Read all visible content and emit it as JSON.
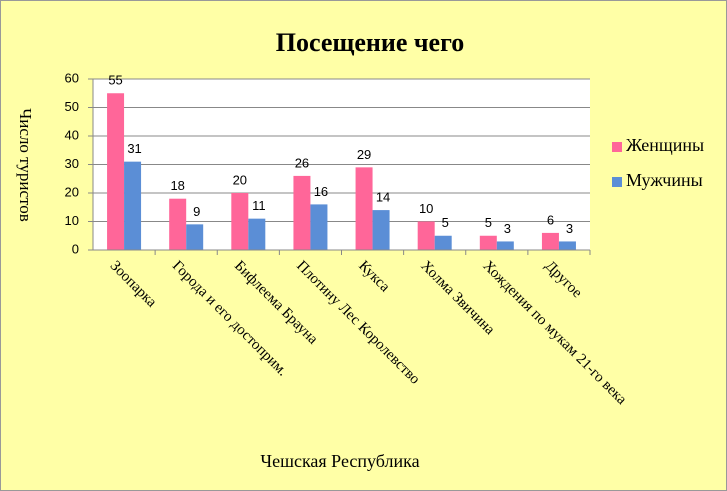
{
  "chart_data": {
    "type": "bar",
    "title": "Посещение чего",
    "ylabel": "Число туристов",
    "xlabel": "Чешская Республика",
    "categories": [
      "Зоопарка",
      "Города и его достоприм.",
      "Бифлеема Брауна",
      "Плотину Лес Королевство",
      "Кукса",
      "Холма Звичина",
      "Хождения по мукам 21-го века",
      "Другое"
    ],
    "series": [
      {
        "name": "Женщины",
        "color": "#ff6699",
        "values": [
          55,
          18,
          20,
          26,
          29,
          10,
          5,
          6
        ]
      },
      {
        "name": "Мужчины",
        "color": "#5b8ed6",
        "values": [
          31,
          9,
          11,
          16,
          14,
          5,
          3,
          3
        ]
      }
    ],
    "ylim": [
      0,
      60
    ],
    "yticks": [
      0,
      10,
      20,
      30,
      40,
      50,
      60
    ],
    "grid": true,
    "legend": "right"
  }
}
